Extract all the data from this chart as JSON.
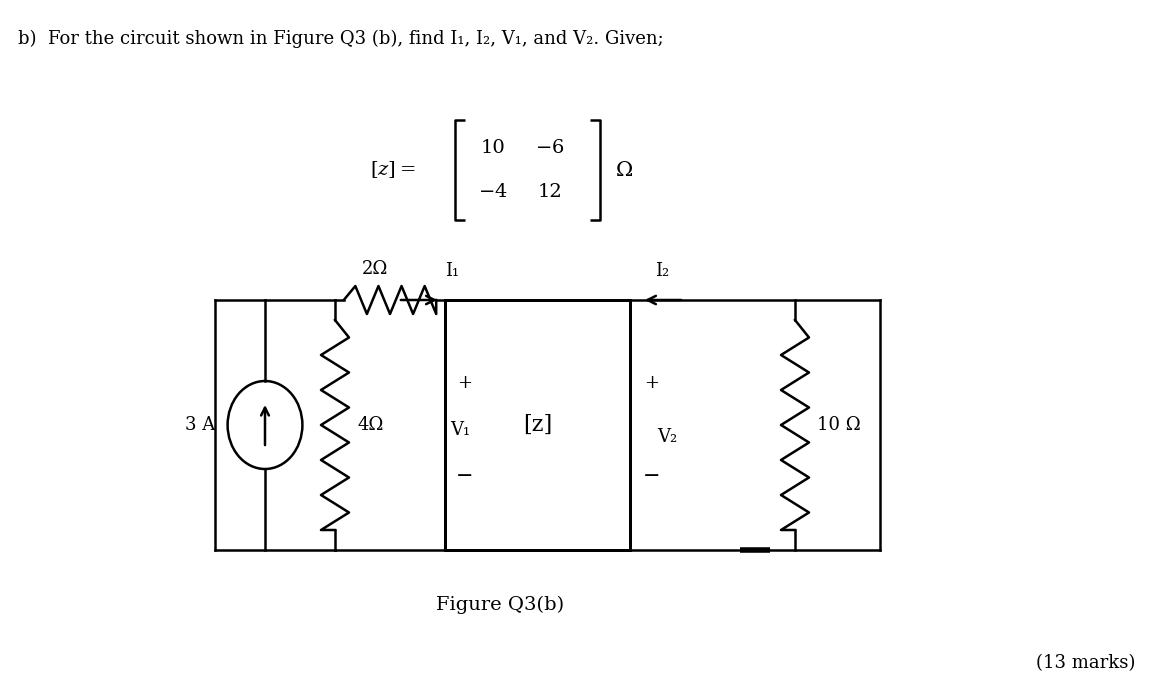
{
  "title_text": "b)  For the circuit shown in Figure Q3 (b), find I₁, I₂, V₁, and V₂. Given;",
  "matrix_unit": "Ω",
  "figure_label": "Figure Q3(b)",
  "marks_label": "(13 marks)",
  "background_color": "#ffffff",
  "text_color": "#000000",
  "circuit": {
    "current_source_value": "3 A",
    "resistor1_value": "4Ω",
    "resistor2_value": "2Ω",
    "resistor3_value": "10 Ω",
    "zbox_label": "[z]",
    "v1_label": "V₁",
    "v2_label": "V₂",
    "i1_label": "I₁",
    "i2_label": "I₂"
  }
}
